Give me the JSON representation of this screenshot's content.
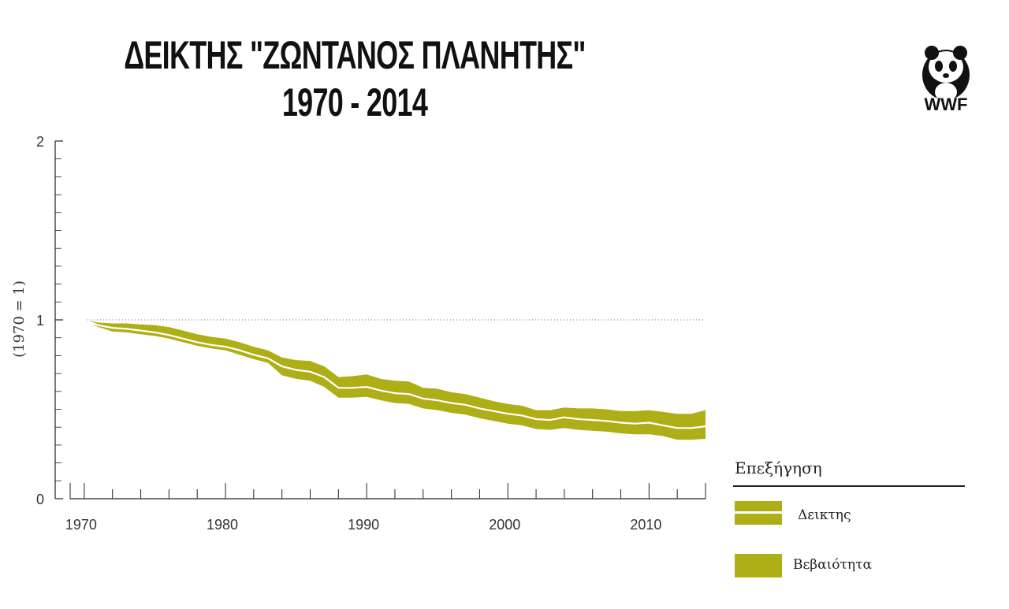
{
  "header": {
    "title_line1": "ΔΕΙΚΤΗΣ \"ΖΩΝΤΑΝΟΣ ΠΛΑΝΗΤΗΣ\"",
    "title_line2": "1970 - 2014"
  },
  "logo": {
    "text": "WWF",
    "icon": "panda-icon"
  },
  "legend": {
    "title": "Επεξήγηση",
    "index_label": "Δεικτης",
    "band_label": "Βεβαιότητα"
  },
  "colors": {
    "band": "#aeae17",
    "index_line": "#ffffff",
    "axis": "#222222",
    "reference": "#666666"
  },
  "chart_data": {
    "type": "area",
    "title": "ΔΕΙΚΤΗΣ \"ΖΩΝΤΑΝΟΣ ΠΛΑΝΗΤΗΣ\" 1970 - 2014",
    "xlabel": "",
    "ylabel": "(1970 = 1)",
    "xlim": [
      1969,
      2014
    ],
    "ylim": [
      0,
      2
    ],
    "x_ticks": [
      1970,
      1980,
      1990,
      2000,
      2010
    ],
    "y_ticks": [
      0,
      1,
      2
    ],
    "reference_line": 1,
    "x": [
      1970,
      1971,
      1972,
      1973,
      1974,
      1975,
      1976,
      1977,
      1978,
      1979,
      1980,
      1981,
      1982,
      1983,
      1984,
      1985,
      1986,
      1987,
      1988,
      1989,
      1990,
      1991,
      1992,
      1993,
      1994,
      1995,
      1996,
      1997,
      1998,
      1999,
      2000,
      2001,
      2002,
      2003,
      2004,
      2005,
      2006,
      2007,
      2008,
      2009,
      2010,
      2011,
      2012,
      2013,
      2014
    ],
    "series": [
      {
        "name": "Δεικτης",
        "values": [
          1.0,
          0.97,
          0.955,
          0.95,
          0.94,
          0.93,
          0.915,
          0.895,
          0.875,
          0.86,
          0.85,
          0.83,
          0.805,
          0.785,
          0.74,
          0.72,
          0.71,
          0.68,
          0.62,
          0.62,
          0.625,
          0.605,
          0.59,
          0.585,
          0.56,
          0.55,
          0.535,
          0.525,
          0.505,
          0.49,
          0.475,
          0.465,
          0.445,
          0.44,
          0.455,
          0.445,
          0.44,
          0.435,
          0.425,
          0.42,
          0.425,
          0.41,
          0.395,
          0.395,
          0.405
        ]
      },
      {
        "name": "Βεβαιότητα (upper)",
        "values": [
          1.0,
          0.985,
          0.98,
          0.98,
          0.975,
          0.97,
          0.96,
          0.94,
          0.92,
          0.905,
          0.895,
          0.875,
          0.85,
          0.83,
          0.79,
          0.775,
          0.77,
          0.74,
          0.68,
          0.685,
          0.695,
          0.67,
          0.66,
          0.655,
          0.62,
          0.615,
          0.595,
          0.585,
          0.565,
          0.545,
          0.53,
          0.52,
          0.495,
          0.495,
          0.51,
          0.505,
          0.505,
          0.5,
          0.49,
          0.49,
          0.495,
          0.485,
          0.475,
          0.475,
          0.495
        ]
      },
      {
        "name": "Βεβαιότητα (lower)",
        "values": [
          1.0,
          0.96,
          0.935,
          0.93,
          0.92,
          0.91,
          0.895,
          0.875,
          0.855,
          0.84,
          0.83,
          0.805,
          0.78,
          0.76,
          0.69,
          0.67,
          0.66,
          0.625,
          0.565,
          0.565,
          0.57,
          0.55,
          0.535,
          0.53,
          0.505,
          0.495,
          0.48,
          0.47,
          0.45,
          0.435,
          0.42,
          0.41,
          0.39,
          0.385,
          0.395,
          0.385,
          0.38,
          0.375,
          0.365,
          0.36,
          0.36,
          0.35,
          0.33,
          0.33,
          0.335
        ]
      }
    ]
  }
}
